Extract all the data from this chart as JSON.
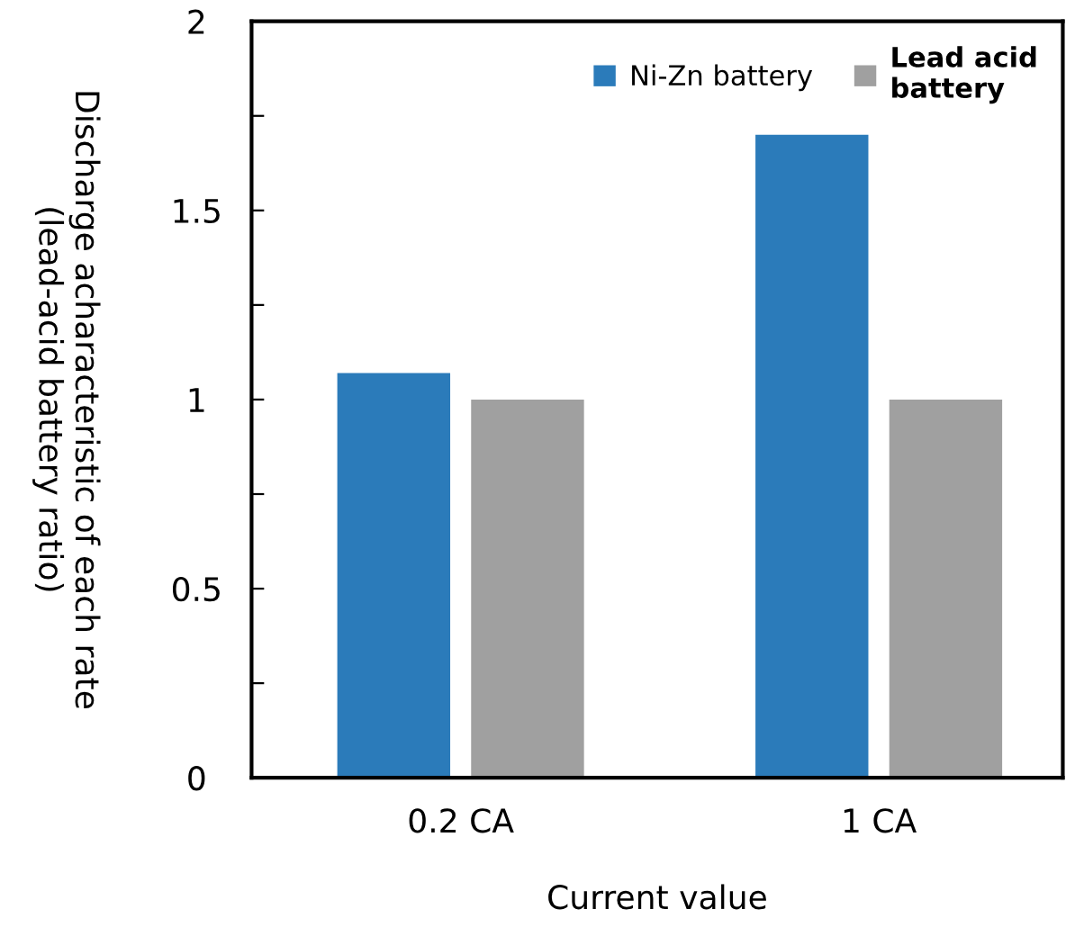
{
  "chart_data": {
    "type": "bar",
    "xlabel": "Current value",
    "ylabel": "Discharge acharacteristic of each rate\n(lead-acid battery ratio)",
    "categories": [
      "0.2 CA",
      "1 CA"
    ],
    "series": [
      {
        "name": "Ni-Zn battery",
        "color": "#2b7bba",
        "values": [
          1.07,
          1.7
        ]
      },
      {
        "name": "Lead acid\nbattery",
        "color": "#a0a0a0",
        "values": [
          1,
          1
        ]
      }
    ],
    "ylim": [
      0,
      2
    ],
    "yticks": [
      0,
      {
        "value": 0.25,
        "label": null
      },
      0.5,
      {
        "value": 0.75,
        "label": null
      },
      1,
      {
        "value": 1.25,
        "label": null
      },
      1.5,
      {
        "value": 1.75,
        "label": null
      },
      2
    ],
    "grid": false,
    "legend": "top right"
  }
}
